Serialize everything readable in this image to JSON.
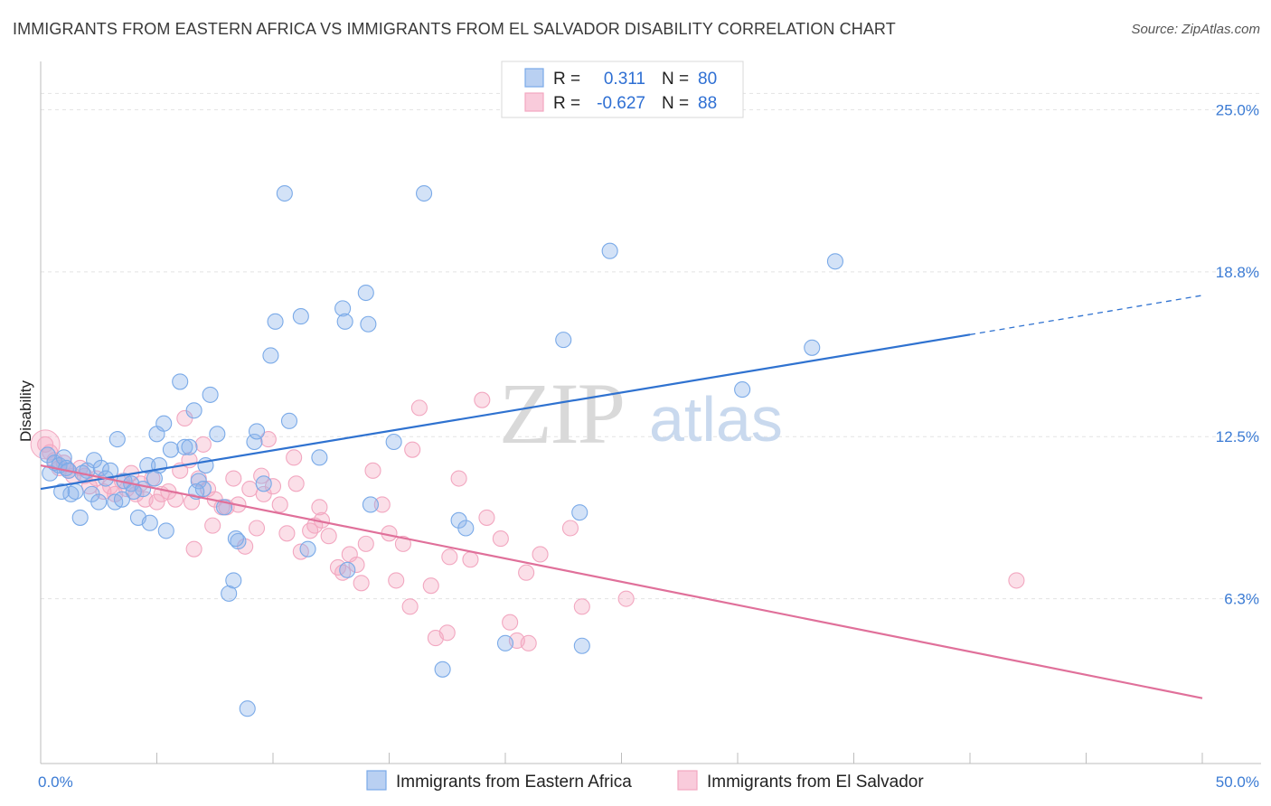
{
  "title": "IMMIGRANTS FROM EASTERN AFRICA VS IMMIGRANTS FROM EL SALVADOR DISABILITY CORRELATION CHART",
  "source": "Source: ZipAtlas.com",
  "watermark": {
    "zip": "ZIP",
    "atlas": "atlas"
  },
  "legend": {
    "rows": [
      {
        "r_label": "R =",
        "r_value": "0.311",
        "n_label": "N =",
        "n_value": "80"
      },
      {
        "r_label": "R =",
        "r_value": "-0.627",
        "n_label": "N =",
        "n_value": "88"
      }
    ]
  },
  "colors": {
    "blue": "#7aaae8",
    "blue_line": "#2f72d0",
    "pink": "#f2a7c0",
    "pink_line": "#e0709a",
    "tick": "#3b7bd4"
  },
  "chart_data": {
    "type": "scatter",
    "title": "IMMIGRANTS FROM EASTERN AFRICA VS IMMIGRANTS FROM EL SALVADOR DISABILITY CORRELATION CHART",
    "xlabel": "",
    "ylabel": "Disability",
    "xlim": [
      0,
      50
    ],
    "ylim": [
      0,
      26.5
    ],
    "x_tick_labels": [
      "0.0%",
      "50.0%"
    ],
    "y_ticks": [
      6.3,
      12.5,
      18.8,
      25.0
    ],
    "y_tick_labels": [
      "6.3%",
      "12.5%",
      "18.8%",
      "25.0%"
    ],
    "grid": true,
    "legend_position": "top-center",
    "series": [
      {
        "name": "Immigrants from Eastern Africa",
        "color": "#7aaae8",
        "trend": {
          "x0": 0,
          "y0": 10.5,
          "x1": 40,
          "y1": 16.4,
          "x_dash_end": 50,
          "y_dash_end": 17.9
        },
        "points": [
          [
            0.3,
            11.8
          ],
          [
            0.4,
            11.1
          ],
          [
            0.6,
            11.5
          ],
          [
            0.8,
            11.4
          ],
          [
            1.0,
            11.7
          ],
          [
            1.1,
            11.3
          ],
          [
            1.2,
            11.2
          ],
          [
            1.3,
            10.3
          ],
          [
            1.5,
            10.4
          ],
          [
            1.7,
            9.4
          ],
          [
            2.0,
            11.2
          ],
          [
            2.2,
            10.3
          ],
          [
            2.3,
            11.6
          ],
          [
            2.5,
            10.0
          ],
          [
            2.6,
            11.3
          ],
          [
            3.0,
            11.2
          ],
          [
            3.2,
            10.0
          ],
          [
            3.3,
            12.4
          ],
          [
            3.6,
            10.8
          ],
          [
            3.9,
            10.7
          ],
          [
            4.0,
            10.4
          ],
          [
            4.2,
            9.4
          ],
          [
            4.4,
            10.5
          ],
          [
            4.6,
            11.4
          ],
          [
            4.7,
            9.2
          ],
          [
            5.0,
            12.6
          ],
          [
            5.1,
            11.4
          ],
          [
            5.3,
            13.0
          ],
          [
            5.4,
            8.9
          ],
          [
            5.6,
            12.0
          ],
          [
            6.0,
            14.6
          ],
          [
            6.2,
            12.1
          ],
          [
            6.4,
            12.1
          ],
          [
            6.6,
            13.5
          ],
          [
            6.8,
            10.8
          ],
          [
            7.0,
            10.5
          ],
          [
            7.1,
            11.4
          ],
          [
            7.3,
            14.1
          ],
          [
            7.6,
            12.6
          ],
          [
            7.9,
            9.8
          ],
          [
            8.1,
            6.5
          ],
          [
            8.3,
            7.0
          ],
          [
            8.5,
            8.5
          ],
          [
            8.9,
            2.1
          ],
          [
            9.2,
            12.3
          ],
          [
            9.3,
            12.7
          ],
          [
            9.6,
            10.7
          ],
          [
            9.9,
            15.6
          ],
          [
            10.1,
            16.9
          ],
          [
            10.5,
            21.8
          ],
          [
            10.7,
            13.1
          ],
          [
            11.2,
            17.1
          ],
          [
            11.5,
            8.2
          ],
          [
            12.0,
            11.7
          ],
          [
            13.0,
            17.4
          ],
          [
            13.1,
            16.9
          ],
          [
            13.2,
            7.4
          ],
          [
            14.0,
            18.0
          ],
          [
            14.1,
            16.8
          ],
          [
            14.2,
            9.9
          ],
          [
            15.2,
            12.3
          ],
          [
            16.5,
            21.8
          ],
          [
            17.3,
            3.6
          ],
          [
            18.0,
            9.3
          ],
          [
            18.3,
            9.0
          ],
          [
            20.0,
            4.6
          ],
          [
            22.5,
            16.2
          ],
          [
            23.2,
            9.6
          ],
          [
            23.3,
            4.5
          ],
          [
            24.5,
            19.6
          ],
          [
            30.2,
            14.3
          ],
          [
            33.2,
            15.9
          ],
          [
            34.2,
            19.2
          ],
          [
            6.7,
            10.4
          ],
          [
            2.8,
            10.9
          ],
          [
            3.5,
            10.1
          ],
          [
            4.9,
            10.9
          ],
          [
            0.9,
            10.4
          ],
          [
            1.8,
            11.1
          ],
          [
            8.4,
            8.6
          ]
        ]
      },
      {
        "name": "Immigrants from El Salvador",
        "color": "#f2a7c0",
        "trend": {
          "x0": 0,
          "y0": 11.4,
          "x1": 50,
          "y1": 2.5
        },
        "points": [
          [
            0.2,
            12.2
          ],
          [
            0.4,
            11.9
          ],
          [
            0.6,
            11.6
          ],
          [
            0.8,
            11.3
          ],
          [
            1.0,
            11.5
          ],
          [
            1.2,
            11.2
          ],
          [
            1.4,
            11.0
          ],
          [
            1.7,
            11.3
          ],
          [
            1.9,
            11.0
          ],
          [
            2.1,
            10.6
          ],
          [
            2.4,
            10.9
          ],
          [
            2.7,
            10.4
          ],
          [
            3.0,
            10.6
          ],
          [
            3.2,
            10.3
          ],
          [
            3.5,
            10.8
          ],
          [
            3.7,
            10.5
          ],
          [
            3.9,
            11.1
          ],
          [
            4.1,
            10.3
          ],
          [
            4.3,
            10.7
          ],
          [
            4.5,
            10.1
          ],
          [
            4.8,
            10.9
          ],
          [
            5.0,
            10.0
          ],
          [
            5.2,
            10.3
          ],
          [
            5.5,
            10.4
          ],
          [
            5.8,
            10.1
          ],
          [
            6.0,
            11.2
          ],
          [
            6.2,
            13.2
          ],
          [
            6.4,
            11.6
          ],
          [
            6.6,
            8.2
          ],
          [
            6.8,
            10.9
          ],
          [
            7.0,
            12.2
          ],
          [
            7.2,
            10.5
          ],
          [
            7.5,
            10.1
          ],
          [
            7.8,
            9.8
          ],
          [
            8.0,
            9.8
          ],
          [
            8.3,
            10.9
          ],
          [
            8.5,
            9.9
          ],
          [
            8.8,
            8.3
          ],
          [
            9.0,
            10.5
          ],
          [
            9.3,
            9.0
          ],
          [
            9.6,
            10.3
          ],
          [
            9.8,
            12.4
          ],
          [
            10.0,
            10.6
          ],
          [
            10.3,
            9.9
          ],
          [
            10.6,
            8.8
          ],
          [
            10.9,
            11.7
          ],
          [
            11.2,
            8.1
          ],
          [
            11.6,
            8.9
          ],
          [
            11.8,
            9.1
          ],
          [
            12.1,
            9.3
          ],
          [
            12.4,
            8.7
          ],
          [
            12.8,
            7.5
          ],
          [
            13.0,
            7.3
          ],
          [
            13.3,
            8.0
          ],
          [
            13.6,
            7.6
          ],
          [
            13.8,
            6.9
          ],
          [
            14.3,
            11.2
          ],
          [
            14.7,
            9.9
          ],
          [
            15.0,
            8.8
          ],
          [
            15.3,
            7.0
          ],
          [
            15.6,
            8.4
          ],
          [
            16.0,
            12.0
          ],
          [
            16.3,
            13.6
          ],
          [
            16.8,
            6.8
          ],
          [
            17.0,
            4.8
          ],
          [
            17.5,
            5.0
          ],
          [
            18.0,
            10.9
          ],
          [
            18.5,
            7.8
          ],
          [
            19.2,
            9.4
          ],
          [
            19.8,
            8.6
          ],
          [
            20.2,
            5.4
          ],
          [
            20.5,
            4.7
          ],
          [
            20.9,
            7.3
          ],
          [
            21.5,
            8.0
          ],
          [
            22.8,
            9.0
          ],
          [
            23.3,
            6.0
          ],
          [
            25.2,
            6.3
          ],
          [
            42.0,
            7.0
          ],
          [
            19.0,
            13.9
          ],
          [
            15.9,
            6.0
          ],
          [
            17.6,
            7.9
          ],
          [
            21.0,
            4.6
          ],
          [
            12.0,
            9.8
          ],
          [
            11.0,
            10.7
          ],
          [
            9.5,
            11.0
          ],
          [
            14.0,
            8.4
          ],
          [
            7.4,
            9.1
          ],
          [
            6.5,
            10.0
          ]
        ]
      }
    ]
  },
  "bottom_legend": [
    "Immigrants from Eastern Africa",
    "Immigrants from El Salvador"
  ]
}
